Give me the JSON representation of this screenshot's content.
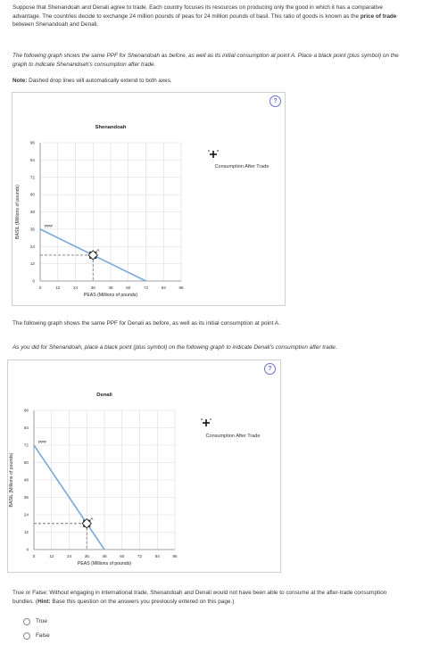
{
  "intro": {
    "p1": "Suppose that Shenandoah and Denali agree to trade. Each country focuses its resources on producing only the good in which it has a comparative advantage. The countries decide to exchange 24 million pounds of peas for 24 million pounds of basil. This ratio of goods is known as the ",
    "p1_bold": "price of trade",
    "p1_end": " between Shenandoah and Denali.",
    "p2": "The following graph shows the same PPF for Shenandoah as before, as well as its initial consumption at point A. Place a black point (plus symbol) on the graph to indicate Shenandoah's consumption after trade.",
    "note_label": "Note:",
    "note_text": " Dashed drop lines will automatically extend to both axes."
  },
  "help_label": "?",
  "graph1": {
    "title": "Shenandoah",
    "ylabel": "BASIL (Millions of pounds)",
    "xlabel": "PEAS (Millions of pounds)",
    "ppf_label": "PPF",
    "point_label": "A",
    "legend_label": "Consumption After Trade"
  },
  "mid": {
    "p3": "The following graph shows the same PPF for Denali as before, as well as its initial consumption at point A.",
    "p4": "As you did for Shenandoah, place a black point (plus symbol) on the following graph to indicate Denali's consumption after trade."
  },
  "graph2": {
    "title": "Denali",
    "ylabel": "BASIL (Millions of pounds)",
    "xlabel": "PEAS (Millions of pounds)",
    "ppf_label": "PPF",
    "point_label": "A",
    "legend_label": "Consumption After Trade"
  },
  "question": {
    "text": "True or False: Without engaging in international trade, Shenandoah and Denali would not have been able to consume at the after-trade consumption bundles. (",
    "hint_label": "Hint:",
    "text_end": " Base this question on the answers you previously entered on this page.)",
    "options": [
      "True",
      "False"
    ]
  },
  "chart_data": [
    {
      "type": "line",
      "title": "Shenandoah",
      "xlabel": "PEAS (Millions of pounds)",
      "ylabel": "BASIL (Millions of pounds)",
      "xlim": [
        0,
        96
      ],
      "ylim": [
        0,
        96
      ],
      "x_ticks": [
        0,
        12,
        24,
        36,
        48,
        60,
        72,
        84,
        96
      ],
      "y_ticks": [
        0,
        12,
        24,
        36,
        48,
        60,
        72,
        84,
        96
      ],
      "grid": true,
      "series": [
        {
          "name": "PPF",
          "x": [
            0,
            72
          ],
          "y": [
            36,
            0
          ]
        }
      ],
      "points": [
        {
          "label": "A",
          "x": 36,
          "y": 18
        }
      ]
    },
    {
      "type": "line",
      "title": "Denali",
      "xlabel": "PEAS (Millions of pounds)",
      "ylabel": "BASIL (Millions of pounds)",
      "xlim": [
        0,
        96
      ],
      "ylim": [
        0,
        96
      ],
      "x_ticks": [
        0,
        12,
        24,
        36,
        48,
        60,
        72,
        84,
        96
      ],
      "y_ticks": [
        0,
        12,
        24,
        36,
        48,
        60,
        72,
        84,
        96
      ],
      "grid": true,
      "series": [
        {
          "name": "PPF",
          "x": [
            0,
            48
          ],
          "y": [
            72,
            0
          ]
        }
      ],
      "points": [
        {
          "label": "A",
          "x": 36,
          "y": 18
        }
      ]
    }
  ]
}
